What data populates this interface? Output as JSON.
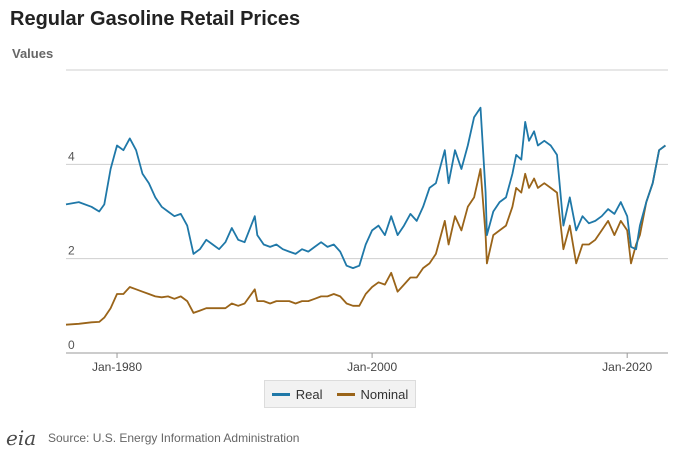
{
  "header": {
    "title": "Regular Gasoline Retail Prices"
  },
  "footer": {
    "logo_text": "eia",
    "source": "Source: U.S. Energy Information Administration"
  },
  "legend": {
    "position": "bottom-center",
    "items": [
      {
        "label": "Real",
        "color": "#1f78a8"
      },
      {
        "label": "Nominal",
        "color": "#9a6419"
      }
    ]
  },
  "chart_data": {
    "type": "line",
    "title": "Regular Gasoline Retail Prices",
    "ylabel": "Values",
    "xlabel": "",
    "ylim": [
      0,
      6
    ],
    "xlim": [
      1976.0,
      2023.2
    ],
    "yticks": [
      0,
      2,
      4
    ],
    "grid": true,
    "xticks": [
      {
        "x": 1980.0,
        "label": "Jan-1980"
      },
      {
        "x": 2000.0,
        "label": "Jan-2000"
      },
      {
        "x": 2020.0,
        "label": "Jan-2020"
      }
    ],
    "series": [
      {
        "name": "Real",
        "color": "#1f78a8",
        "x": [
          1976.0,
          1977.0,
          1978.0,
          1978.6,
          1979.0,
          1979.5,
          1980.0,
          1980.5,
          1981.0,
          1981.5,
          1982.0,
          1982.5,
          1983.0,
          1983.5,
          1984.0,
          1984.5,
          1985.0,
          1985.5,
          1986.0,
          1986.5,
          1987.0,
          1987.5,
          1988.0,
          1988.5,
          1989.0,
          1989.5,
          1990.0,
          1990.8,
          1991.0,
          1991.5,
          1992.0,
          1992.5,
          1993.0,
          1993.5,
          1994.0,
          1994.5,
          1995.0,
          1995.5,
          1996.0,
          1996.5,
          1997.0,
          1997.5,
          1998.0,
          1998.5,
          1999.0,
          1999.5,
          2000.0,
          2000.5,
          2001.0,
          2001.5,
          2002.0,
          2002.5,
          2003.0,
          2003.5,
          2004.0,
          2004.5,
          2005.0,
          2005.7,
          2006.0,
          2006.5,
          2007.0,
          2007.5,
          2008.0,
          2008.5,
          2008.9,
          2009.0,
          2009.5,
          2010.0,
          2010.5,
          2011.0,
          2011.3,
          2011.7,
          2012.0,
          2012.3,
          2012.7,
          2013.0,
          2013.5,
          2014.0,
          2014.5,
          2015.0,
          2015.5,
          2016.0,
          2016.5,
          2017.0,
          2017.5,
          2018.0,
          2018.5,
          2019.0,
          2019.5,
          2020.0,
          2020.3,
          2020.7,
          2021.0,
          2021.5,
          2022.0,
          2022.5,
          2023.0
        ],
        "y": [
          3.15,
          3.2,
          3.1,
          3.0,
          3.15,
          3.9,
          4.4,
          4.3,
          4.55,
          4.3,
          3.8,
          3.6,
          3.3,
          3.1,
          3.0,
          2.9,
          2.95,
          2.7,
          2.1,
          2.2,
          2.4,
          2.3,
          2.2,
          2.35,
          2.65,
          2.4,
          2.35,
          2.9,
          2.5,
          2.3,
          2.25,
          2.3,
          2.2,
          2.15,
          2.1,
          2.2,
          2.15,
          2.25,
          2.35,
          2.25,
          2.3,
          2.15,
          1.85,
          1.8,
          1.85,
          2.3,
          2.6,
          2.7,
          2.5,
          2.9,
          2.5,
          2.7,
          2.95,
          2.8,
          3.1,
          3.5,
          3.6,
          4.3,
          3.6,
          4.3,
          3.9,
          4.4,
          5.0,
          5.2,
          3.4,
          2.5,
          3.0,
          3.2,
          3.3,
          3.8,
          4.2,
          4.1,
          4.9,
          4.5,
          4.7,
          4.4,
          4.5,
          4.4,
          4.2,
          2.7,
          3.3,
          2.6,
          2.9,
          2.75,
          2.8,
          2.9,
          3.05,
          2.95,
          3.2,
          2.9,
          2.25,
          2.2,
          2.7,
          3.2,
          3.6,
          4.3,
          4.4
        ]
      },
      {
        "name": "Nominal",
        "color": "#9a6419",
        "x": [
          1976.0,
          1977.0,
          1978.0,
          1978.6,
          1979.0,
          1979.5,
          1980.0,
          1980.5,
          1981.0,
          1981.5,
          1982.0,
          1982.5,
          1983.0,
          1983.5,
          1984.0,
          1984.5,
          1985.0,
          1985.5,
          1986.0,
          1986.5,
          1987.0,
          1987.5,
          1988.0,
          1988.5,
          1989.0,
          1989.5,
          1990.0,
          1990.8,
          1991.0,
          1991.5,
          1992.0,
          1992.5,
          1993.0,
          1993.5,
          1994.0,
          1994.5,
          1995.0,
          1995.5,
          1996.0,
          1996.5,
          1997.0,
          1997.5,
          1998.0,
          1998.5,
          1999.0,
          1999.5,
          2000.0,
          2000.5,
          2001.0,
          2001.5,
          2002.0,
          2002.5,
          2003.0,
          2003.5,
          2004.0,
          2004.5,
          2005.0,
          2005.7,
          2006.0,
          2006.5,
          2007.0,
          2007.5,
          2008.0,
          2008.5,
          2008.9,
          2009.0,
          2009.5,
          2010.0,
          2010.5,
          2011.0,
          2011.3,
          2011.7,
          2012.0,
          2012.3,
          2012.7,
          2013.0,
          2013.5,
          2014.0,
          2014.5,
          2015.0,
          2015.5,
          2016.0,
          2016.5,
          2017.0,
          2017.5,
          2018.0,
          2018.5,
          2019.0,
          2019.5,
          2020.0,
          2020.3,
          2020.7,
          2021.0,
          2021.5,
          2022.0,
          2022.5,
          2023.0
        ],
        "y": [
          0.6,
          0.62,
          0.65,
          0.66,
          0.75,
          0.95,
          1.25,
          1.25,
          1.4,
          1.35,
          1.3,
          1.25,
          1.2,
          1.18,
          1.2,
          1.15,
          1.2,
          1.1,
          0.85,
          0.9,
          0.95,
          0.95,
          0.95,
          0.95,
          1.05,
          1.0,
          1.05,
          1.35,
          1.1,
          1.1,
          1.05,
          1.1,
          1.1,
          1.1,
          1.05,
          1.1,
          1.1,
          1.15,
          1.2,
          1.2,
          1.25,
          1.2,
          1.05,
          1.0,
          1.0,
          1.25,
          1.4,
          1.5,
          1.45,
          1.7,
          1.3,
          1.45,
          1.6,
          1.6,
          1.8,
          1.9,
          2.1,
          2.8,
          2.3,
          2.9,
          2.6,
          3.1,
          3.3,
          3.9,
          2.5,
          1.9,
          2.5,
          2.6,
          2.7,
          3.1,
          3.5,
          3.4,
          3.8,
          3.5,
          3.7,
          3.5,
          3.6,
          3.5,
          3.4,
          2.2,
          2.7,
          1.9,
          2.3,
          2.3,
          2.4,
          2.6,
          2.8,
          2.5,
          2.8,
          2.6,
          1.9,
          2.3,
          2.5,
          3.2,
          3.6,
          4.3,
          4.4
        ]
      }
    ]
  }
}
